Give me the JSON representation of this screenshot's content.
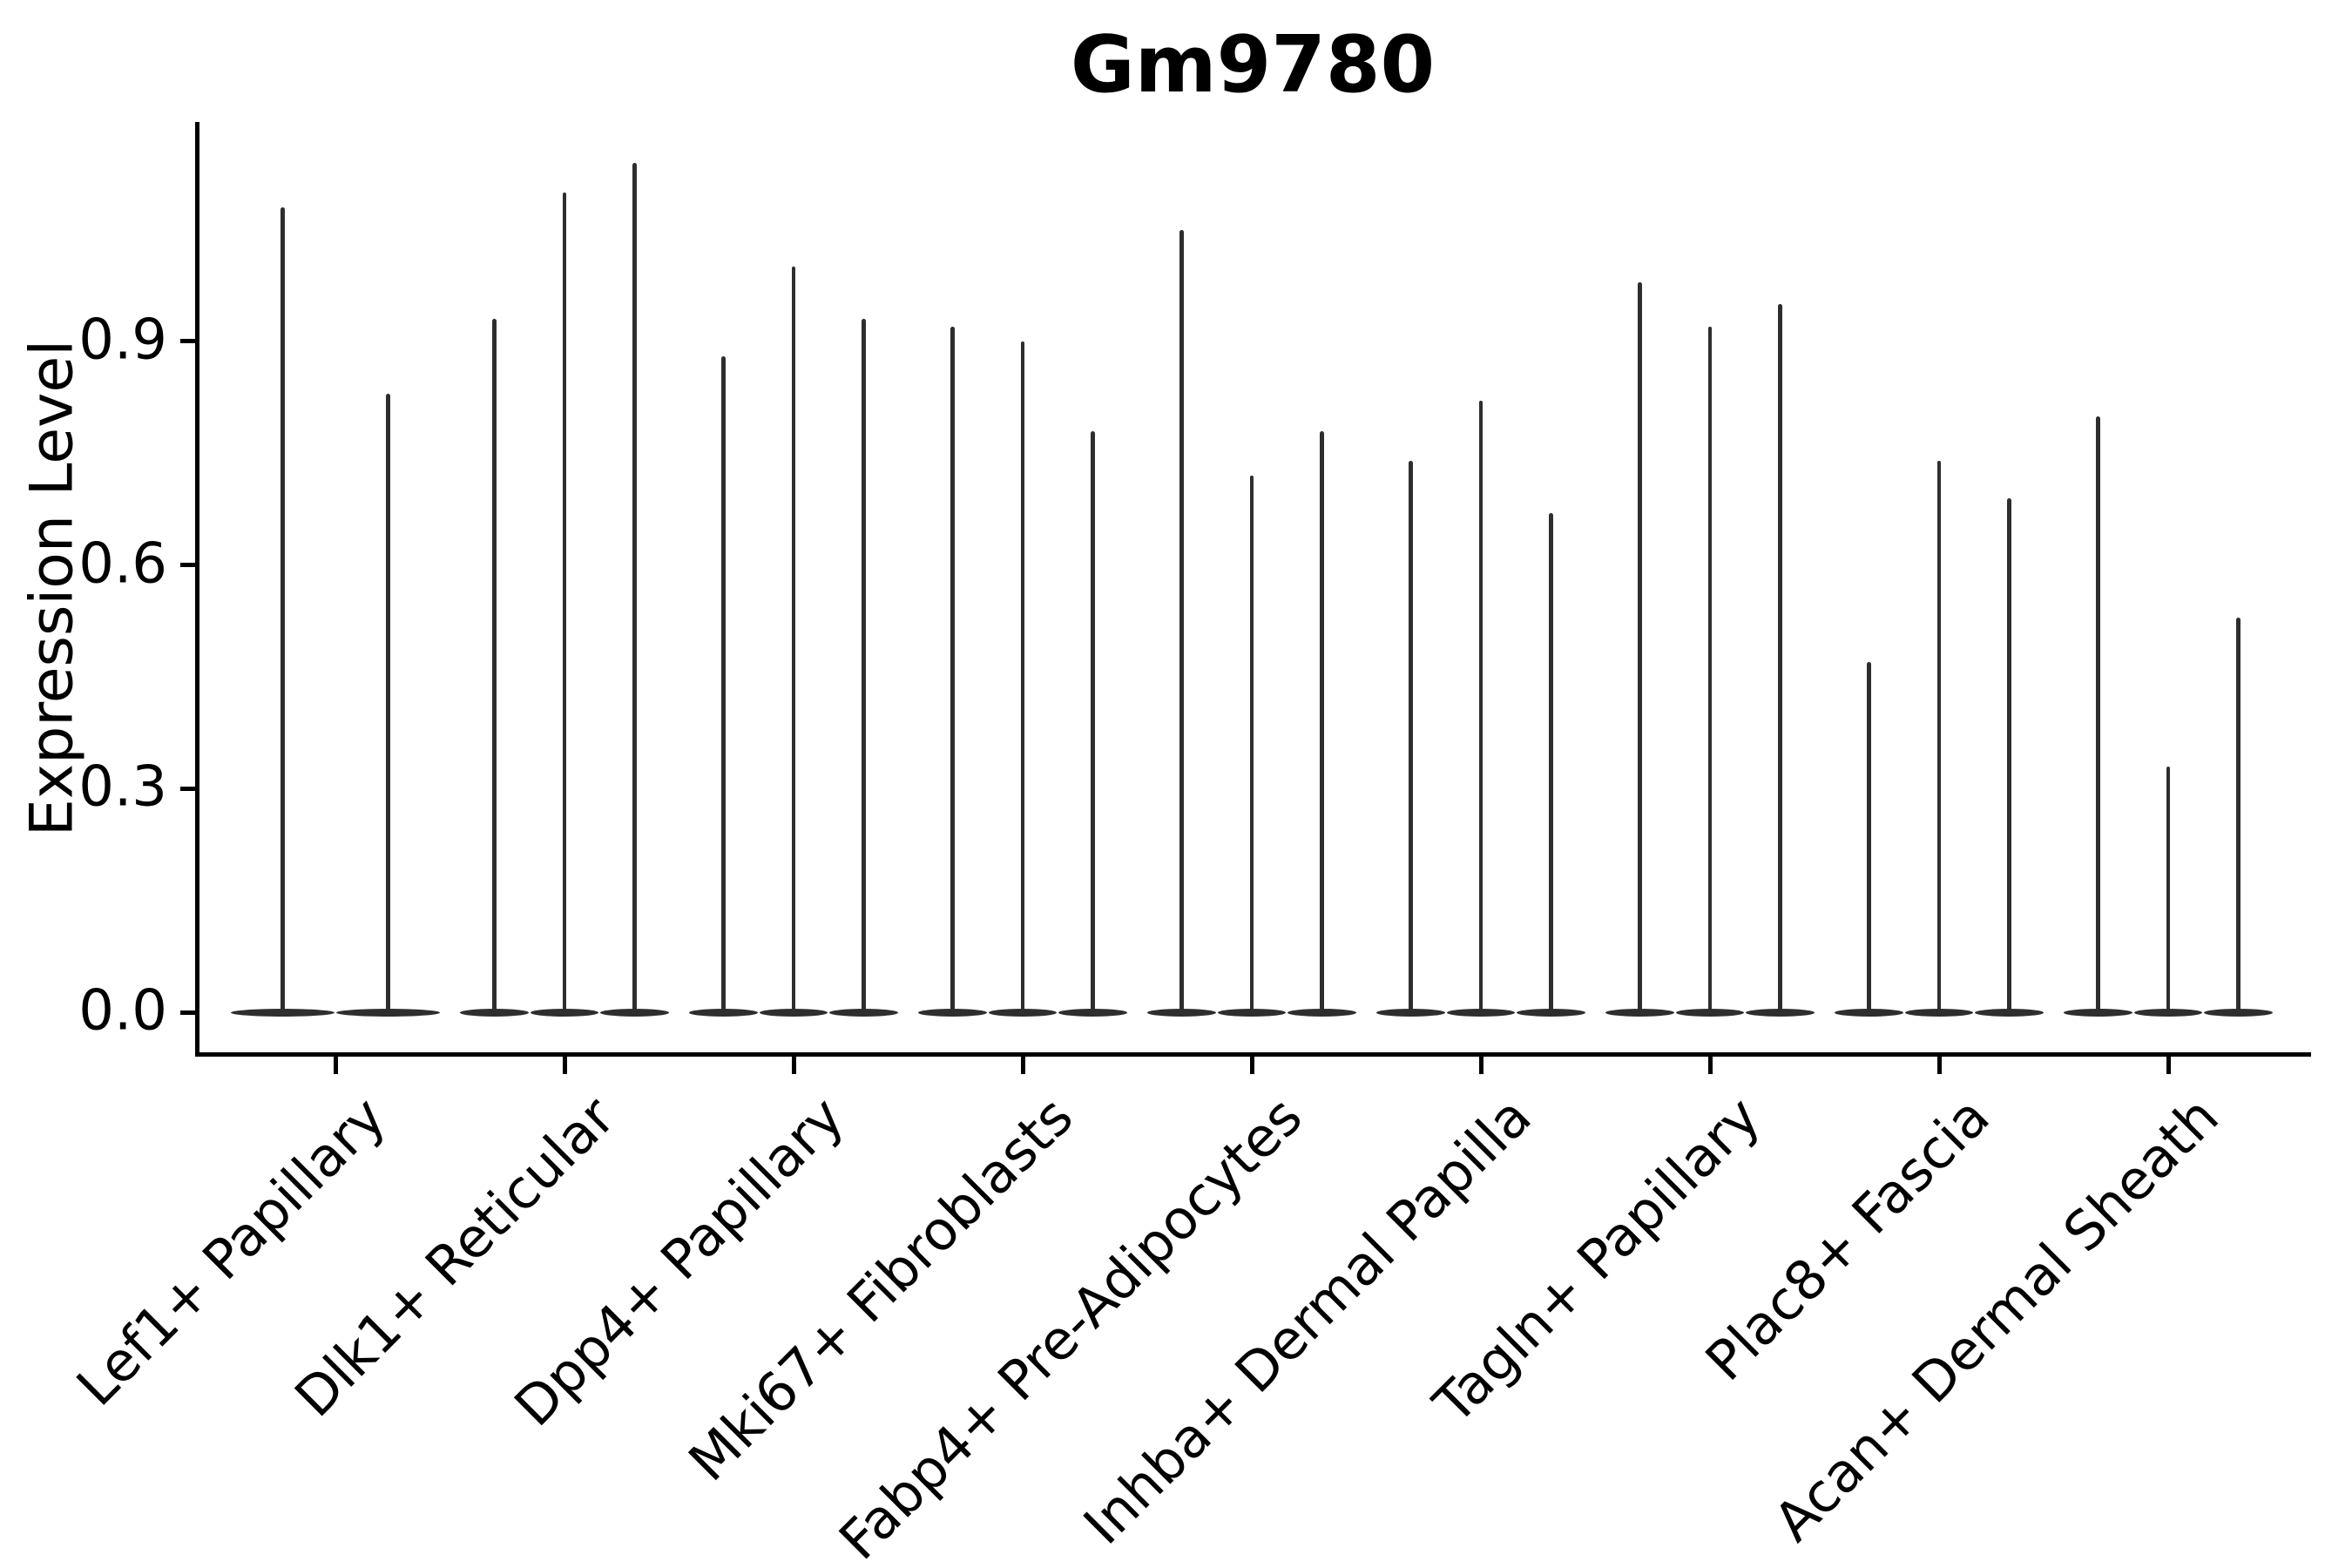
{
  "figure": {
    "background_color": "#ffffff",
    "text_color": "#000000",
    "violin_color": "#2e2e2e"
  },
  "chart_data": {
    "type": "violin",
    "title": "Gm9780",
    "xlabel": "",
    "ylabel": "Expression Level",
    "grid": false,
    "legend": "none",
    "ylim": [
      -0.06,
      1.19
    ],
    "ytick_values": [
      0.0,
      0.3,
      0.6,
      0.9
    ],
    "ytick_labels": [
      "0.0",
      "0.3",
      "0.6",
      "0.9"
    ],
    "categories": [
      "Lef1+ Papillary",
      "Dlk1+ Reticular",
      "Dpp4+ Papillary",
      "Mki67+ Fibroblasts",
      "Fabp4+ Pre-Adipocytes",
      "Inhba+ Dermal Papilla",
      "Tagln+ Papillary",
      "Plac8+ Fascia",
      "Acan+ Dermal Sheath"
    ],
    "groups": [
      {
        "category": "Lef1+ Papillary",
        "violin_max_values": [
          1.08,
          0.83
        ]
      },
      {
        "category": "Dlk1+ Reticular",
        "violin_max_values": [
          0.93,
          1.1,
          1.14
        ]
      },
      {
        "category": "Dpp4+ Papillary",
        "violin_max_values": [
          0.88,
          1.0,
          0.93
        ]
      },
      {
        "category": "Mki67+ Fibroblasts",
        "violin_max_values": [
          0.92,
          0.9,
          0.78
        ]
      },
      {
        "category": "Fabp4+ Pre-Adipocytes",
        "violin_max_values": [
          1.05,
          0.72,
          0.78
        ]
      },
      {
        "category": "Inhba+ Dermal Papilla",
        "violin_max_values": [
          0.74,
          0.82,
          0.67
        ]
      },
      {
        "category": "Tagln+ Papillary",
        "violin_max_values": [
          0.98,
          0.92,
          0.95
        ]
      },
      {
        "category": "Plac8+ Fascia",
        "violin_max_values": [
          0.47,
          0.74,
          0.69
        ]
      },
      {
        "category": "Acan+ Dermal Sheath",
        "violin_max_values": [
          0.8,
          0.33,
          0.53
        ]
      }
    ],
    "style_note": "Each violin is a near-zero distribution: a wide flat lens at 0 with a very thin vertical spike rising to its maximum expression value."
  }
}
